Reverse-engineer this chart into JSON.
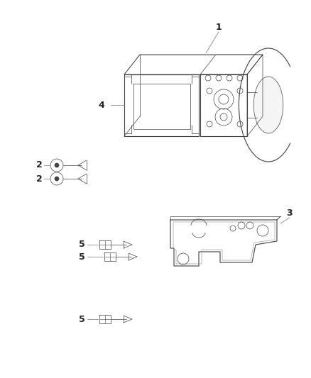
{
  "background_color": "#ffffff",
  "line_color": "#404040",
  "figsize": [
    4.38,
    5.33
  ],
  "dpi": 100,
  "lw_main": 0.8,
  "lw_thin": 0.5,
  "lw_thick": 1.0
}
